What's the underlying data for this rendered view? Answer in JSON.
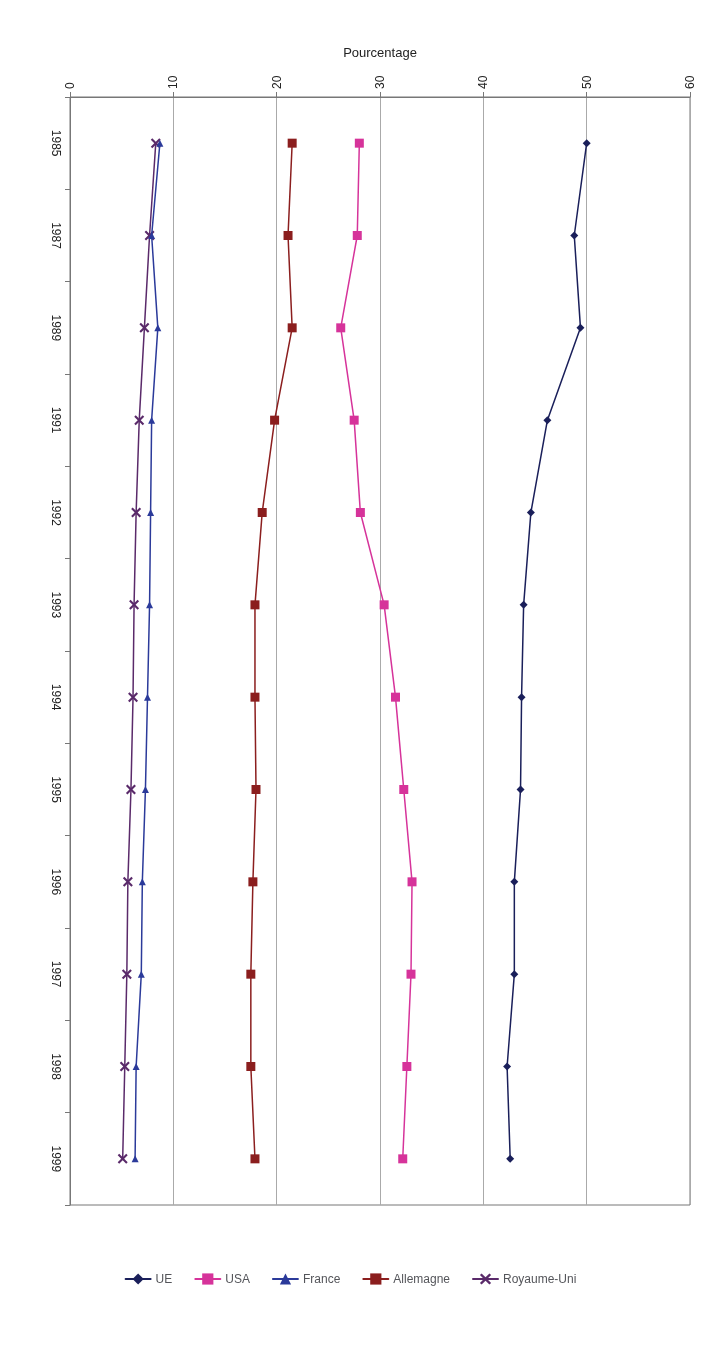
{
  "chart_data": {
    "type": "line",
    "orientation": "horizontal",
    "xlabel": "Pourcentage",
    "categories": [
      "1985",
      "1987",
      "1989",
      "1991",
      "1992",
      "1993",
      "1994",
      "1995",
      "1996",
      "1997",
      "1998",
      "1999"
    ],
    "series": [
      {
        "name": "UE",
        "color": "#1a1f5a",
        "marker": "diamond",
        "values": [
          50,
          48.8,
          49.4,
          46.2,
          44.6,
          43.9,
          43.7,
          43.6,
          43.0,
          43.0,
          42.3,
          42.6
        ]
      },
      {
        "name": "USA",
        "color": "#d6339a",
        "marker": "square",
        "values": [
          28.0,
          27.8,
          26.2,
          27.5,
          28.1,
          30.4,
          31.5,
          32.3,
          33.1,
          33.0,
          32.6,
          32.2
        ]
      },
      {
        "name": "France",
        "color": "#2b3a9a",
        "marker": "triangle",
        "values": [
          8.7,
          7.9,
          8.5,
          7.9,
          7.8,
          7.7,
          7.5,
          7.3,
          7.0,
          6.9,
          6.4,
          6.3
        ]
      },
      {
        "name": "Allemagne",
        "color": "#8b1e1e",
        "marker": "square",
        "values": [
          21.5,
          21.1,
          21.5,
          19.8,
          18.6,
          17.9,
          17.9,
          18.0,
          17.7,
          17.5,
          17.5,
          17.9
        ]
      },
      {
        "name": "Royaume-Uni",
        "color": "#5a2a6a",
        "marker": "cross",
        "values": [
          8.3,
          7.7,
          7.2,
          6.7,
          6.4,
          6.2,
          6.1,
          5.9,
          5.6,
          5.5,
          5.3,
          5.1
        ]
      }
    ],
    "xlim": [
      0,
      60
    ],
    "xticks": [
      0,
      10,
      20,
      30,
      40,
      50,
      60
    ],
    "grid": "x",
    "legend": "bottom",
    "line_style": "solid"
  }
}
